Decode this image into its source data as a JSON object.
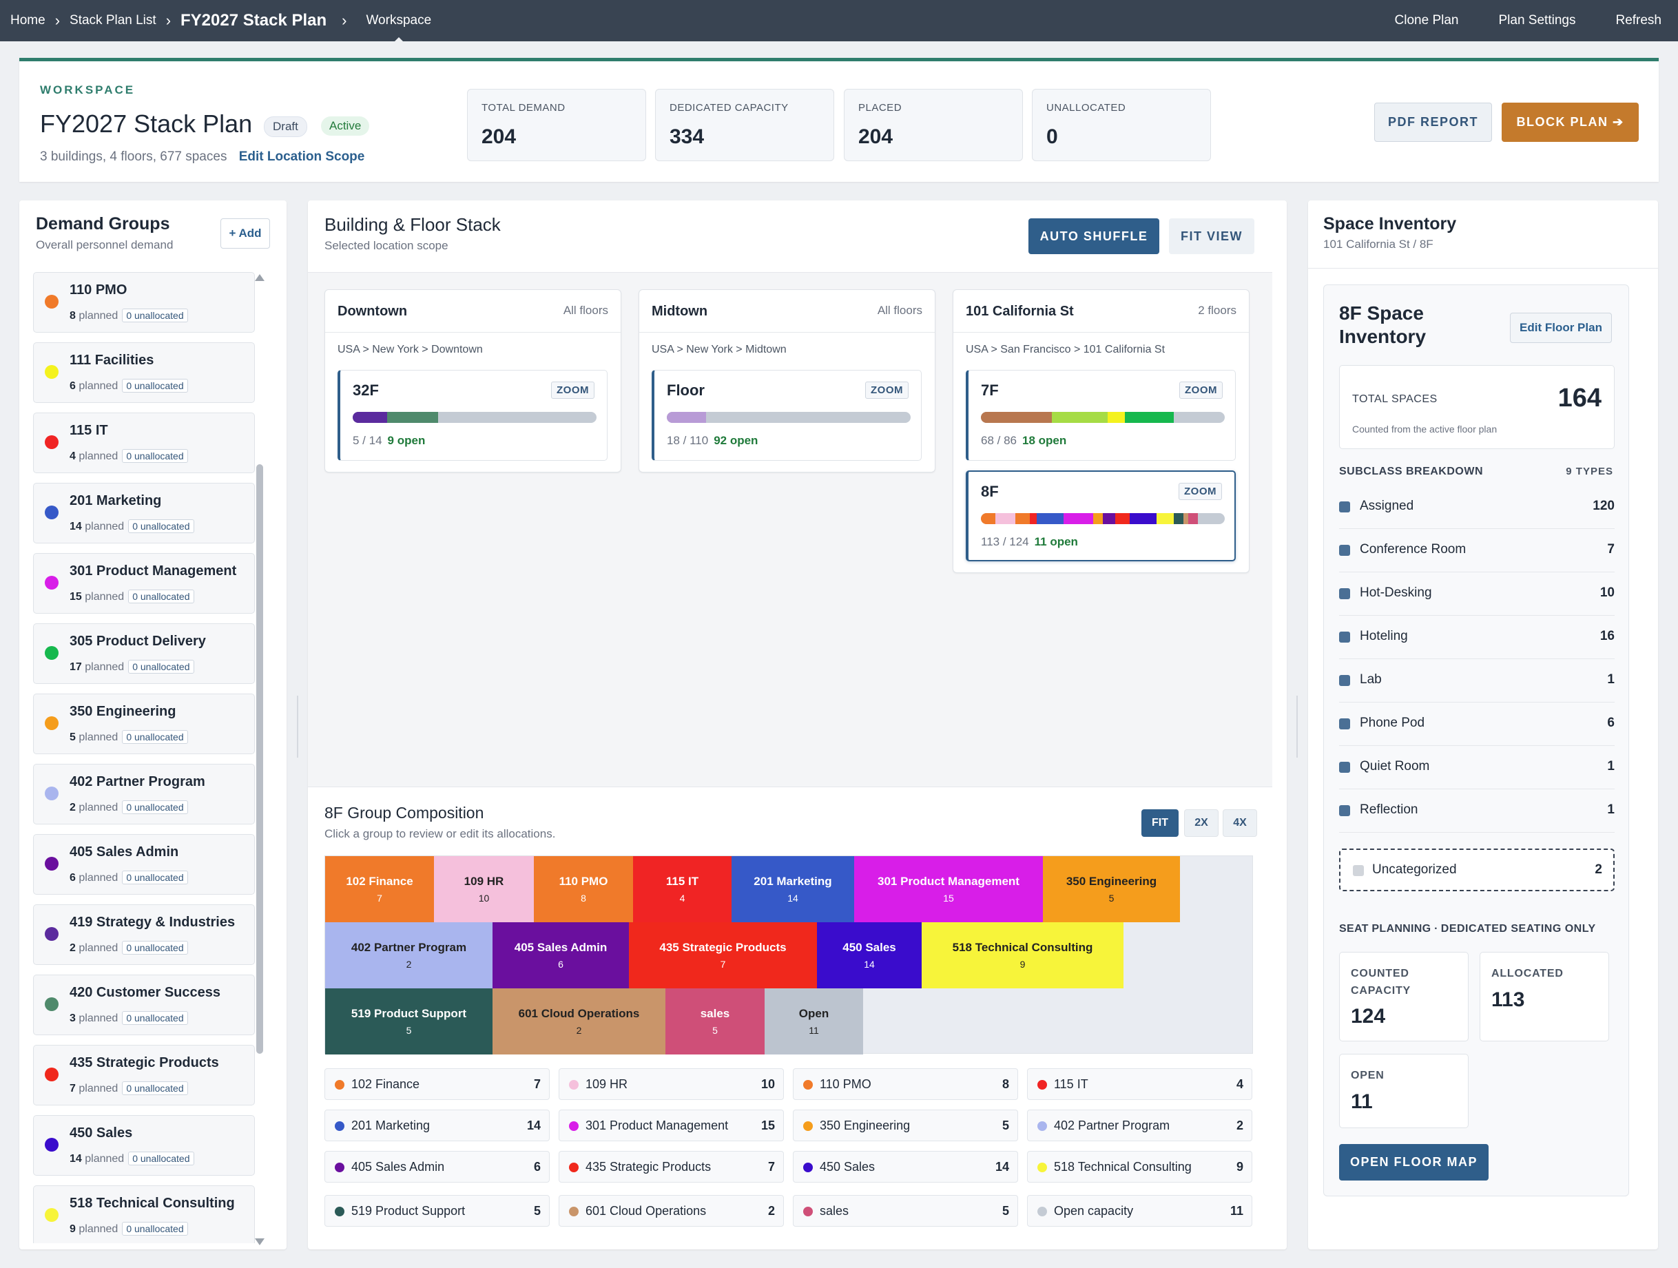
{
  "nav": {
    "crumbs": [
      "Home",
      "Stack Plan List",
      "FY2027 Stack Plan",
      "Workspace"
    ],
    "actions": [
      "Clone Plan",
      "Plan Settings",
      "Refresh"
    ]
  },
  "workspace": {
    "label": "WORKSPACE",
    "title": "FY2027 Stack Plan",
    "badge_draft": "Draft",
    "badge_active": "Active",
    "summary": "3 buildings, 4 floors, 677 spaces",
    "edit_scope": "Edit Location Scope",
    "stats": [
      {
        "label": "TOTAL DEMAND",
        "value": "204"
      },
      {
        "label": "DEDICATED CAPACITY",
        "value": "334"
      },
      {
        "label": "PLACED",
        "value": "204"
      },
      {
        "label": "UNALLOCATED",
        "value": "0"
      }
    ],
    "pdf_btn": "PDF REPORT",
    "block_btn": "BLOCK PLAN ➔"
  },
  "demand": {
    "title": "Demand Groups",
    "subtitle": "Overall personnel demand",
    "add_btn": "+ Add",
    "planned_word": "planned",
    "groups": [
      {
        "name": "110 PMO",
        "planned": "8",
        "unalloc": "0 unallocated",
        "color": "#f07a2a"
      },
      {
        "name": "111 Facilities",
        "planned": "6",
        "unalloc": "0 unallocated",
        "color": "#f4f21e"
      },
      {
        "name": "115 IT",
        "planned": "4",
        "unalloc": "0 unallocated",
        "color": "#f02424"
      },
      {
        "name": "201 Marketing",
        "planned": "14",
        "unalloc": "0 unallocated",
        "color": "#3659c8"
      },
      {
        "name": "301 Product Management",
        "planned": "15",
        "unalloc": "0 unallocated",
        "color": "#d81ee8"
      },
      {
        "name": "305 Product Delivery",
        "planned": "17",
        "unalloc": "0 unallocated",
        "color": "#16b84e"
      },
      {
        "name": "350 Engineering",
        "planned": "5",
        "unalloc": "0 unallocated",
        "color": "#f59d1c"
      },
      {
        "name": "402 Partner Program",
        "planned": "2",
        "unalloc": "0 unallocated",
        "color": "#a9b5ee"
      },
      {
        "name": "405 Sales Admin",
        "planned": "6",
        "unalloc": "0 unallocated",
        "color": "#6a0f9e"
      },
      {
        "name": "419 Strategy & Industries",
        "planned": "2",
        "unalloc": "0 unallocated",
        "color": "#5b2b9e"
      },
      {
        "name": "420 Customer Success",
        "planned": "3",
        "unalloc": "0 unallocated",
        "color": "#4f8a6c"
      },
      {
        "name": "435 Strategic Products",
        "planned": "7",
        "unalloc": "0 unallocated",
        "color": "#f0281c"
      },
      {
        "name": "450 Sales",
        "planned": "14",
        "unalloc": "0 unallocated",
        "color": "#3a0ccc"
      },
      {
        "name": "518 Technical Consulting",
        "planned": "9",
        "unalloc": "0 unallocated",
        "color": "#f7f43a"
      }
    ]
  },
  "stack": {
    "title": "Building & Floor Stack",
    "subtitle": "Selected location scope",
    "shuffle_btn": "AUTO SHUFFLE",
    "fit_btn": "FIT VIEW",
    "zoom_label": "ZOOM",
    "buildings": [
      {
        "name": "Downtown",
        "floors_label": "All floors",
        "path": "USA > New York > Downtown",
        "floors": [
          {
            "name": "32F",
            "count": "5 / 14",
            "open": "9 open",
            "segments": [
              {
                "color": "#5b2b9e",
                "pct": 14
              },
              {
                "color": "#4f8a6c",
                "pct": 21
              }
            ]
          }
        ]
      },
      {
        "name": "Midtown",
        "floors_label": "All floors",
        "path": "USA > New York > Midtown",
        "floors": [
          {
            "name": "Floor",
            "count": "18 / 110",
            "open": "92 open",
            "segments": [
              {
                "color": "#b89bd6",
                "pct": 16
              }
            ]
          }
        ]
      },
      {
        "name": "101 California St",
        "floors_label": "2 floors",
        "path": "USA > San Francisco > 101 California St",
        "floors": [
          {
            "name": "7F",
            "count": "68 / 86",
            "open": "18 open",
            "segments": [
              {
                "color": "#b8774f",
                "pct": 29
              },
              {
                "color": "#a6dc45",
                "pct": 23
              },
              {
                "color": "#f4f21e",
                "pct": 7
              },
              {
                "color": "#16b84e",
                "pct": 20
              }
            ]
          },
          {
            "name": "8F",
            "count": "113 / 124",
            "open": "11 open",
            "selected": true,
            "segments": [
              {
                "color": "#f07a2a",
                "pct": 6
              },
              {
                "color": "#f5c0dc",
                "pct": 8
              },
              {
                "color": "#f07a2a",
                "pct": 6
              },
              {
                "color": "#f02424",
                "pct": 3
              },
              {
                "color": "#3659c8",
                "pct": 11
              },
              {
                "color": "#d81ee8",
                "pct": 12
              },
              {
                "color": "#f59d1c",
                "pct": 4
              },
              {
                "color": "#6a0f9e",
                "pct": 5
              },
              {
                "color": "#f0281c",
                "pct": 6
              },
              {
                "color": "#3a0ccc",
                "pct": 11
              },
              {
                "color": "#f7f43a",
                "pct": 7
              },
              {
                "color": "#2b5a57",
                "pct": 4
              },
              {
                "color": "#c9956a",
                "pct": 2
              },
              {
                "color": "#cf4f78",
                "pct": 4
              }
            ]
          }
        ]
      }
    ]
  },
  "composition": {
    "title": "8F Group Composition",
    "subtitle": "Click a group to review or edit its allocations.",
    "zoom_opts": [
      "FIT",
      "2X",
      "4X"
    ],
    "tiles": [
      {
        "name": "102 Finance",
        "value": "7",
        "color": "#f07a2a",
        "text": "#fff"
      },
      {
        "name": "109 HR",
        "value": "10",
        "color": "#f5c0dc",
        "text": "#222"
      },
      {
        "name": "110 PMO",
        "value": "8",
        "color": "#f07a2a",
        "text": "#fff"
      },
      {
        "name": "115 IT",
        "value": "4",
        "color": "#f02424",
        "text": "#fff"
      },
      {
        "name": "201 Marketing",
        "value": "14",
        "color": "#3659c8",
        "text": "#fff"
      },
      {
        "name": "301 Product Management",
        "value": "15",
        "color": "#d81ee8",
        "text": "#fff"
      },
      {
        "name": "350 Engineering",
        "value": "5",
        "color": "#f59d1c",
        "text": "#222"
      },
      {
        "name": "402 Partner Program",
        "value": "2",
        "color": "#a9b5ee",
        "text": "#222"
      },
      {
        "name": "405 Sales Admin",
        "value": "6",
        "color": "#6a0f9e",
        "text": "#fff"
      },
      {
        "name": "435 Strategic Products",
        "value": "7",
        "color": "#f0281c",
        "text": "#fff"
      },
      {
        "name": "450 Sales",
        "value": "14",
        "color": "#3a0ccc",
        "text": "#fff"
      },
      {
        "name": "518 Technical Consulting",
        "value": "9",
        "color": "#f7f43a",
        "text": "#222"
      },
      {
        "name": "519 Product Support",
        "value": "5",
        "color": "#2b5a57",
        "text": "#fff"
      },
      {
        "name": "601 Cloud Operations",
        "value": "2",
        "color": "#c9956a",
        "text": "#222"
      },
      {
        "name": "sales",
        "value": "5",
        "color": "#cf4f78",
        "text": "#fff"
      },
      {
        "name": "Open",
        "value": "11",
        "color": "#bcc4cf",
        "text": "#222"
      }
    ],
    "legend": [
      {
        "name": "102 Finance",
        "value": "7",
        "color": "#f07a2a"
      },
      {
        "name": "109 HR",
        "value": "10",
        "color": "#f5c0dc"
      },
      {
        "name": "110 PMO",
        "value": "8",
        "color": "#f07a2a"
      },
      {
        "name": "115 IT",
        "value": "4",
        "color": "#f02424"
      },
      {
        "name": "201 Marketing",
        "value": "14",
        "color": "#3659c8"
      },
      {
        "name": "301 Product Management",
        "value": "15",
        "color": "#d81ee8"
      },
      {
        "name": "350 Engineering",
        "value": "5",
        "color": "#f59d1c"
      },
      {
        "name": "402 Partner Program",
        "value": "2",
        "color": "#a9b5ee"
      },
      {
        "name": "405 Sales Admin",
        "value": "6",
        "color": "#6a0f9e"
      },
      {
        "name": "435 Strategic Products",
        "value": "7",
        "color": "#f0281c"
      },
      {
        "name": "450 Sales",
        "value": "14",
        "color": "#3a0ccc"
      },
      {
        "name": "518 Technical Consulting",
        "value": "9",
        "color": "#f7f43a"
      },
      {
        "name": "519 Product Support",
        "value": "5",
        "color": "#2b5a57"
      },
      {
        "name": "601 Cloud Operations",
        "value": "2",
        "color": "#c9956a"
      },
      {
        "name": "sales",
        "value": "5",
        "color": "#cf4f78"
      },
      {
        "name": "Open capacity",
        "value": "11",
        "color": "#c4cbd4"
      }
    ]
  },
  "inventory": {
    "title": "Space Inventory",
    "subtitle": "101 California St / 8F",
    "card_title": "8F Space Inventory",
    "edit_btn": "Edit Floor Plan",
    "total_label": "TOTAL SPACES",
    "total_value": "164",
    "total_note": "Counted from the active floor plan",
    "breakdown_label": "SUBCLASS BREAKDOWN",
    "types_label": "9 TYPES",
    "subclasses": [
      {
        "name": "Assigned",
        "value": "120"
      },
      {
        "name": "Conference Room",
        "value": "7"
      },
      {
        "name": "Hot-Desking",
        "value": "10"
      },
      {
        "name": "Hoteling",
        "value": "16"
      },
      {
        "name": "Lab",
        "value": "1"
      },
      {
        "name": "Phone Pod",
        "value": "6"
      },
      {
        "name": "Quiet Room",
        "value": "1"
      },
      {
        "name": "Reflection",
        "value": "1"
      }
    ],
    "uncategorized": {
      "name": "Uncategorized",
      "value": "2"
    },
    "seat_planning": "SEAT PLANNING ·",
    "seat_planning_bold": "DEDICATED SEATING ONLY",
    "counted_label": "COUNTED CAPACITY",
    "counted_value": "124",
    "allocated_label": "ALLOCATED",
    "allocated_value": "113",
    "open_label": "OPEN",
    "open_value": "11",
    "open_map_btn": "OPEN FLOOR MAP"
  }
}
